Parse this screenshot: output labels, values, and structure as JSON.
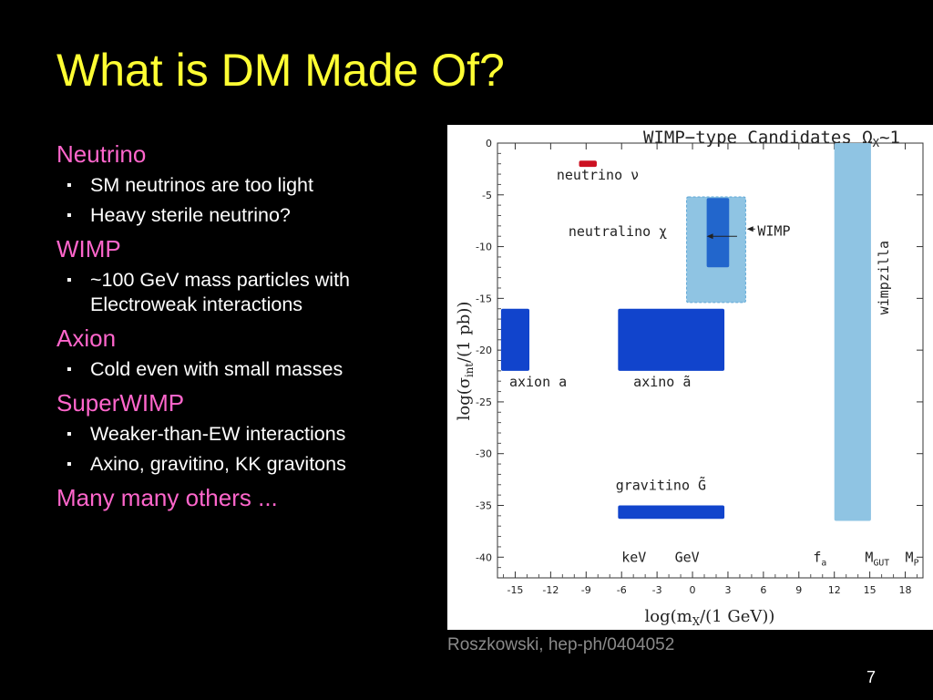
{
  "slide": {
    "title": "What is DM Made Of?",
    "sections": [
      {
        "title": "Neutrino",
        "items": [
          "SM neutrinos are too light",
          "Heavy sterile neutrino?"
        ]
      },
      {
        "title": "WIMP",
        "items": [
          "~100 GeV mass particles with Electroweak interactions"
        ]
      },
      {
        "title": "Axion",
        "items": [
          "Cold even with small masses"
        ]
      },
      {
        "title": "SuperWIMP",
        "items": [
          "Weaker-than-EW interactions",
          "Axino, gravitino, KK gravitons"
        ]
      },
      {
        "title": "Many many others ...",
        "items": []
      }
    ],
    "caption": "Roszkowski, hep-ph/0404052",
    "page_number": "7"
  },
  "colors": {
    "background": "#000000",
    "title": "#ffff33",
    "section_title": "#ff66cc",
    "body_text": "#ffffff",
    "caption": "#8a8a8a"
  },
  "chart_data": {
    "type": "region",
    "title": "WIMP−type Candidates Ω",
    "title_sub": "X",
    "title_tail": "~1",
    "xlabel": "log(m",
    "xlabel_sub": "X",
    "xlabel_tail": "/(1 GeV))",
    "ylabel": "log(σ",
    "ylabel_sub": "int",
    "ylabel_tail": "/(1 pb))",
    "xlim": [
      -16.5,
      19.5
    ],
    "ylim": [
      -42,
      0
    ],
    "xticks": [
      -15,
      -12,
      -9,
      -6,
      -3,
      0,
      3,
      6,
      9,
      12,
      15,
      18
    ],
    "yticks": [
      0,
      -5,
      -10,
      -15,
      -20,
      -25,
      -30,
      -35,
      -40
    ],
    "regions": [
      {
        "name": "neutrino",
        "x": [
          -9.6,
          -8.1
        ],
        "y": [
          -1.7,
          -2.3
        ],
        "color": "#cc1122",
        "label": "neutrino ν",
        "label_at": [
          -11.5,
          -3.5
        ]
      },
      {
        "name": "wimp-neutralino-band",
        "x": [
          -0.5,
          4.5
        ],
        "y": [
          -5.2,
          -15.4
        ],
        "color": "#8fc4e3",
        "dashed": true
      },
      {
        "name": "neutralino",
        "x": [
          1.2,
          3.1
        ],
        "y": [
          -5.3,
          -12.0
        ],
        "color": "#2266cc",
        "label": "neutralino χ",
        "label_at": [
          -10.5,
          -9.0
        ]
      },
      {
        "name": "axion",
        "x": [
          -16.2,
          -13.8
        ],
        "y": [
          -16.0,
          -22.0
        ],
        "color": "#1144cc",
        "label": "axion a",
        "label_at": [
          -15.5,
          -23.5
        ]
      },
      {
        "name": "axino",
        "x": [
          -6.3,
          2.7
        ],
        "y": [
          -16.0,
          -22.0
        ],
        "color": "#1144cc",
        "label": "axino ã",
        "label_at": [
          -5.0,
          -23.5
        ]
      },
      {
        "name": "gravitino",
        "x": [
          -6.3,
          2.7
        ],
        "y": [
          -35.0,
          -36.3
        ],
        "color": "#1144cc",
        "label": "gravitino G̃",
        "label_at": [
          -6.5,
          -33.5
        ]
      },
      {
        "name": "wimpzilla",
        "x": [
          12.0,
          15.1
        ],
        "y": [
          0,
          -36.5
        ],
        "color": "#8fc4e3",
        "label": "wimpzilla"
      }
    ],
    "annotations": [
      {
        "text": "WIMP",
        "at": [
          5.5,
          -8.5
        ]
      },
      {
        "text": "keV",
        "at": [
          -6.0,
          -40.0
        ]
      },
      {
        "text": "GeV",
        "at": [
          -1.5,
          -40.0
        ]
      },
      {
        "text": "f",
        "sub": "a",
        "at": [
          10.2,
          -40.0
        ]
      },
      {
        "text": "M",
        "sub": "GUT",
        "at": [
          14.6,
          -40.0
        ]
      },
      {
        "text": "M",
        "sub": "P",
        "at": [
          18.0,
          -40.0
        ]
      }
    ]
  }
}
